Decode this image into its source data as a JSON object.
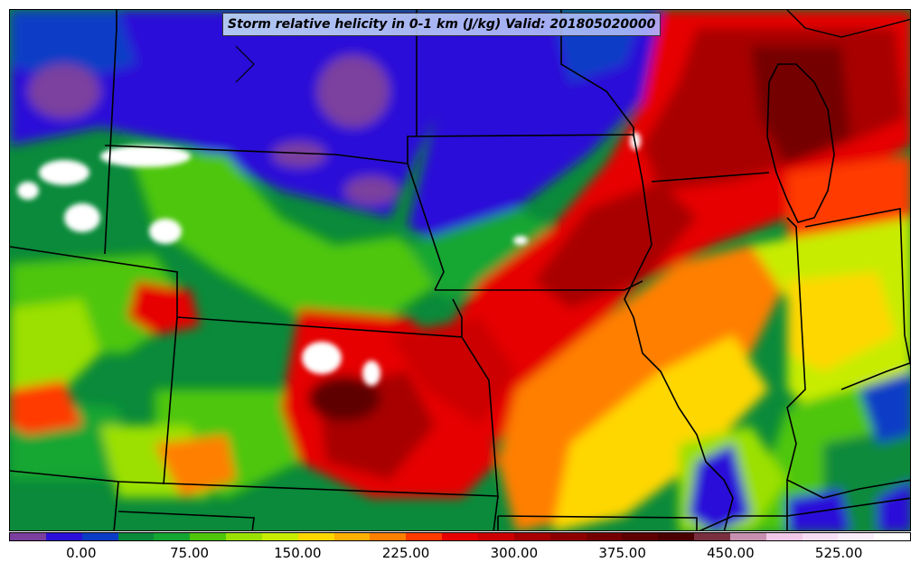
{
  "title": "Storm relative helicity in 0-1 km (J/kg) Valid: 201805020000",
  "colorbar": {
    "colors": [
      "#7b3f9e",
      "#2a10d8",
      "#0a3cc6",
      "#0a8a3a",
      "#14a632",
      "#4ec60a",
      "#9be004",
      "#c7ec02",
      "#ffd700",
      "#ffb000",
      "#ff7f00",
      "#ff3a00",
      "#e60000",
      "#cc0000",
      "#a80000",
      "#8e0000",
      "#740000",
      "#5e0000",
      "#4a0000",
      "#7a3040",
      "#c890b0",
      "#f0c8e8",
      "#f8def4",
      "#fbeefb",
      "#ffffff"
    ],
    "ticks": [
      {
        "label": "0.00",
        "value": 0
      },
      {
        "label": "75.00",
        "value": 75
      },
      {
        "label": "150.00",
        "value": 150
      },
      {
        "label": "225.00",
        "value": 225
      },
      {
        "label": "300.00",
        "value": 300
      },
      {
        "label": "375.00",
        "value": 375
      },
      {
        "label": "450.00",
        "value": 450
      },
      {
        "label": "525.00",
        "value": 525
      }
    ],
    "min": -50,
    "max": 575
  }
}
